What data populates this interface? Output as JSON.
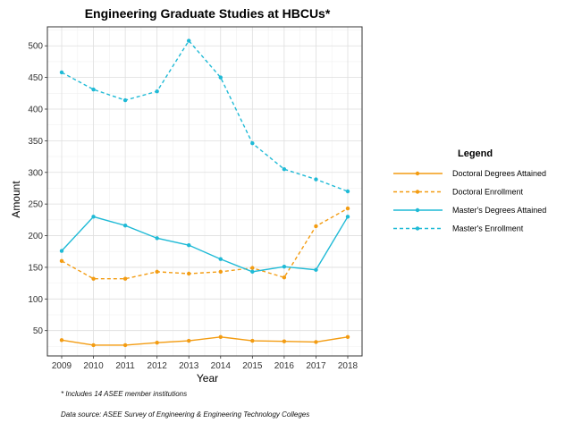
{
  "chart_data": {
    "type": "line",
    "title": "Engineering Graduate Studies at HBCUs*",
    "xlabel": "Year",
    "ylabel": "Amount",
    "x": [
      2009,
      2010,
      2011,
      2012,
      2013,
      2014,
      2015,
      2016,
      2017,
      2018
    ],
    "ylim": [
      10,
      530
    ],
    "yticks": [
      50,
      100,
      150,
      200,
      250,
      300,
      350,
      400,
      450,
      500
    ],
    "grid": true,
    "legend_title": "Legend",
    "legend_position": "right",
    "series": [
      {
        "name": "Doctoral Degrees Attained",
        "color": "#f39c12",
        "dash": "solid",
        "values": [
          35,
          27,
          27,
          31,
          34,
          40,
          34,
          33,
          32,
          40
        ]
      },
      {
        "name": "Doctoral Enrollment",
        "color": "#f39c12",
        "dash": "dashed",
        "values": [
          160,
          132,
          132,
          143,
          140,
          143,
          149,
          134,
          215,
          243
        ]
      },
      {
        "name": "Master's Degrees Attained",
        "color": "#1fbad6",
        "dash": "solid",
        "values": [
          176,
          230,
          216,
          196,
          185,
          163,
          143,
          151,
          146,
          230
        ]
      },
      {
        "name": "Master's Enrollment",
        "color": "#1fbad6",
        "dash": "dashed",
        "values": [
          458,
          431,
          414,
          428,
          508,
          450,
          346,
          305,
          289,
          270
        ]
      }
    ]
  },
  "footnotes": {
    "note": "* Includes 14 ASEE member institutions",
    "source": "Data source: ASEE Survey of Engineering & Engineering Technology Colleges"
  }
}
